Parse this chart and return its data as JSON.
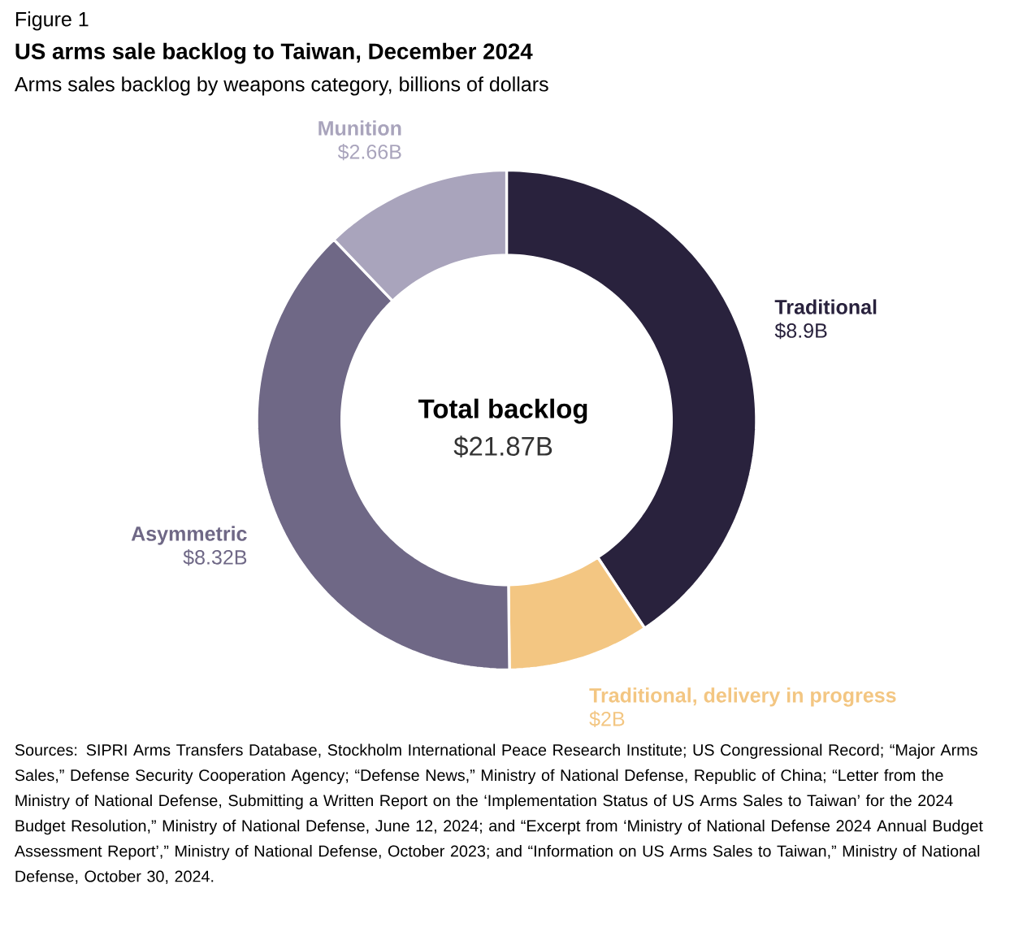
{
  "chart_data": {
    "type": "donut",
    "title": "US arms sale backlog to Taiwan, December 2024",
    "subtitle": "Arms sales backlog by weapons category, billions of dollars",
    "categories": [
      "Traditional",
      "Traditional, delivery in progress",
      "Asymmetric",
      "Munition"
    ],
    "values": [
      8.9,
      2,
      8.32,
      2.66
    ],
    "colors": [
      "#29223d",
      "#f3c682",
      "#6f6886",
      "#a9a4bc"
    ],
    "value_labels": [
      "$8.9B",
      "$2B",
      "$8.32B",
      "$2.66B"
    ],
    "annotations": [
      "Figure 1",
      "Total backlog",
      "$21.87B",
      "Sources: SIPRI Arms Transfers Database, Stockholm International Peace Research Institute; US Congressional Record; “Major Arms Sales,” Defense Security Cooperation Agency; “Defense News,” Ministry of National Defense, Republic of China; “Letter from the Ministry of National Defense, Submitting a Written Report on the ‘Implementation Status of US Arms Sales to Taiwan’ for the 2024 Budget Resolution,” Ministry of National Defense, June 12, 2024; and “Excerpt from ‘Ministry of National Defense 2024 Annual Budget Assessment Report’,” Ministry of National Defense, October 2023; and “Information on US Arms Sales to Taiwan,” Ministry of National Defense, October 30, 2024."
    ]
  }
}
